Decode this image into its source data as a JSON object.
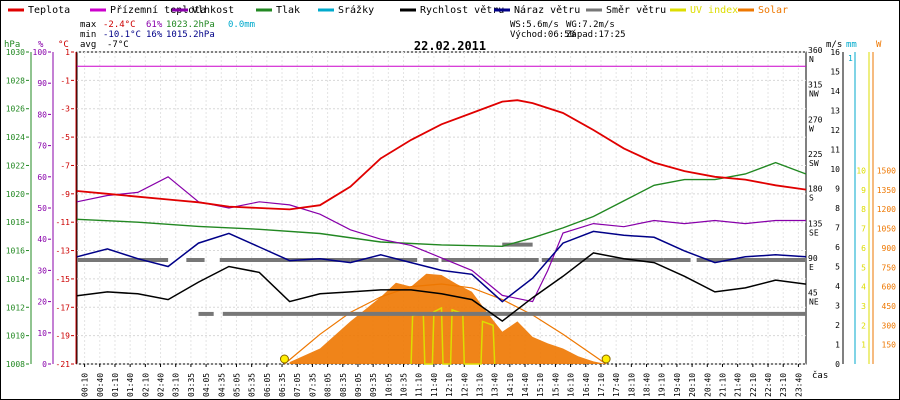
{
  "chart_data": {
    "type": "line",
    "title": "22.02.2011",
    "legend": [
      {
        "name": "Teplota",
        "color": "#e00000"
      },
      {
        "name": "Přízemní teplota",
        "color": "#cc00cc"
      },
      {
        "name": "Vlhkost",
        "color": "#8800aa"
      },
      {
        "name": "Tlak",
        "color": "#228822"
      },
      {
        "name": "Srážky",
        "color": "#00aacc"
      },
      {
        "name": "Rychlost větru",
        "color": "#000000"
      },
      {
        "name": "Náraz větru",
        "color": "#000088"
      },
      {
        "name": "Směr větru",
        "color": "#777777"
      },
      {
        "name": "UV index",
        "color": "#dddd00"
      },
      {
        "name": "Solar",
        "color": "#ee7700"
      }
    ],
    "stats": {
      "max": {
        "label": "max",
        "temp": "-2.4°C",
        "hum": "61%",
        "press": "1023.2hPa",
        "rain": "0.0mm"
      },
      "min": {
        "label": "min",
        "temp": "-10.1°C",
        "hum": "16%",
        "press": "1015.2hPa"
      },
      "avg": {
        "label": "avg",
        "temp": "-7°C"
      },
      "ws": "WS:5.6m/s",
      "wg": "WG:7.2m/s",
      "sunrise": "Východ:06:50",
      "sunset": "Západ:17:25"
    },
    "axes": {
      "hpa": {
        "unit": "hPa",
        "ticks": [
          "1030",
          "1028",
          "1026",
          "1024",
          "1022",
          "1020",
          "1018",
          "1016",
          "1014",
          "1012",
          "1010",
          "1008"
        ],
        "color": "#228822"
      },
      "pct": {
        "unit": "%",
        "ticks": [
          "100",
          "90",
          "80",
          "70",
          "60",
          "50",
          "40",
          "30",
          "20",
          "10",
          "0"
        ],
        "color": "#8800aa"
      },
      "temp": {
        "unit": "°C",
        "ticks": [
          "1",
          "-1",
          "-3",
          "-5",
          "-7",
          "-9",
          "-11",
          "-13",
          "-15",
          "-17",
          "-19",
          "-21"
        ],
        "color": "#cc0000"
      },
      "dir": {
        "ticks": [
          {
            "deg": "360",
            "lab": "N"
          },
          {
            "deg": "315",
            "lab": "NW"
          },
          {
            "deg": "270",
            "lab": "W"
          },
          {
            "deg": "225",
            "lab": "SW"
          },
          {
            "deg": "180",
            "lab": "S"
          },
          {
            "deg": "135",
            "lab": "SE"
          },
          {
            "deg": "90",
            "lab": "E"
          },
          {
            "deg": "45",
            "lab": "NE"
          }
        ]
      },
      "ms": {
        "unit": "m/s",
        "ticks": [
          "16",
          "15",
          "14",
          "13",
          "12",
          "11",
          "10",
          "9",
          "8",
          "7",
          "6",
          "5",
          "4",
          "3",
          "2",
          "1",
          "0"
        ]
      },
      "mm": {
        "unit": "mm",
        "ticks": [
          "1"
        ],
        "color": "#00aacc"
      },
      "uv": {
        "ticks": [
          "10",
          "9",
          "8",
          "7",
          "6",
          "5",
          "4",
          "3",
          "2",
          "1"
        ],
        "color": "#dddd00"
      },
      "w": {
        "unit": "W",
        "ticks": [
          "1500",
          "1350",
          "1200",
          "1050",
          "900",
          "750",
          "600",
          "450",
          "300",
          "150"
        ],
        "color": "#ee7700"
      }
    },
    "x_axis": {
      "label": "čas",
      "ticks": [
        "00:10",
        "00:40",
        "01:10",
        "01:40",
        "02:10",
        "02:40",
        "03:10",
        "03:35",
        "04:05",
        "04:35",
        "05:05",
        "05:35",
        "06:05",
        "06:35",
        "07:05",
        "07:35",
        "08:05",
        "08:35",
        "09:05",
        "09:35",
        "10:05",
        "10:35",
        "11:10",
        "11:40",
        "12:10",
        "12:40",
        "13:10",
        "13:40",
        "14:10",
        "14:40",
        "15:10",
        "15:40",
        "16:10",
        "16:40",
        "17:10",
        "17:40",
        "18:10",
        "18:40",
        "19:10",
        "19:40",
        "20:10",
        "20:40",
        "21:10",
        "21:40",
        "22:10",
        "22:40",
        "23:10",
        "23:40"
      ]
    },
    "series": [
      {
        "name": "Teplota",
        "unit": "°C",
        "color": "#e00000",
        "points": [
          [
            0.0,
            -8.8
          ],
          [
            1.0,
            -9.0
          ],
          [
            2.0,
            -9.2
          ],
          [
            3.0,
            -9.4
          ],
          [
            4.0,
            -9.6
          ],
          [
            5.0,
            -9.9
          ],
          [
            6.0,
            -10.0
          ],
          [
            7.0,
            -10.1
          ],
          [
            8.0,
            -9.8
          ],
          [
            9.0,
            -8.5
          ],
          [
            10.0,
            -6.5
          ],
          [
            11.0,
            -5.2
          ],
          [
            12.0,
            -4.1
          ],
          [
            13.0,
            -3.3
          ],
          [
            14.0,
            -2.5
          ],
          [
            14.5,
            -2.4
          ],
          [
            15.0,
            -2.6
          ],
          [
            16.0,
            -3.3
          ],
          [
            17.0,
            -4.5
          ],
          [
            18.0,
            -5.8
          ],
          [
            19.0,
            -6.8
          ],
          [
            20.0,
            -7.4
          ],
          [
            21.0,
            -7.8
          ],
          [
            22.0,
            -8.0
          ],
          [
            23.0,
            -8.4
          ],
          [
            24.0,
            -8.7
          ]
        ]
      },
      {
        "name": "Přízemní teplota",
        "unit": "°C",
        "color": "#cc00cc",
        "points": [
          [
            0.0,
            0.0
          ],
          [
            24.0,
            0.0
          ]
        ]
      },
      {
        "name": "Vlhkost",
        "unit": "%",
        "color": "#8800aa",
        "points": [
          [
            0.0,
            52
          ],
          [
            1.0,
            54
          ],
          [
            2.0,
            55
          ],
          [
            3.0,
            60
          ],
          [
            4.0,
            52
          ],
          [
            5.0,
            50
          ],
          [
            6.0,
            52
          ],
          [
            7.0,
            51
          ],
          [
            8.0,
            48
          ],
          [
            9.0,
            43
          ],
          [
            10.0,
            40
          ],
          [
            11.0,
            38
          ],
          [
            12.0,
            34
          ],
          [
            13.0,
            30
          ],
          [
            14.0,
            22
          ],
          [
            15.0,
            20
          ],
          [
            15.5,
            30
          ],
          [
            16.0,
            42
          ],
          [
            17.0,
            45
          ],
          [
            18.0,
            44
          ],
          [
            19.0,
            46
          ],
          [
            20.0,
            45
          ],
          [
            21.0,
            46
          ],
          [
            22.0,
            45
          ],
          [
            23.0,
            46
          ],
          [
            24.0,
            46
          ]
        ]
      },
      {
        "name": "Tlak",
        "unit": "hPa",
        "color": "#228822",
        "points": [
          [
            0.0,
            1018.2
          ],
          [
            2.0,
            1018.0
          ],
          [
            4.0,
            1017.7
          ],
          [
            6.0,
            1017.5
          ],
          [
            8.0,
            1017.2
          ],
          [
            10.0,
            1016.6
          ],
          [
            12.0,
            1016.4
          ],
          [
            14.0,
            1016.3
          ],
          [
            15.0,
            1016.9
          ],
          [
            16.0,
            1017.6
          ],
          [
            17.0,
            1018.4
          ],
          [
            18.0,
            1019.5
          ],
          [
            19.0,
            1020.6
          ],
          [
            20.0,
            1021.0
          ],
          [
            21.0,
            1021.0
          ],
          [
            22.0,
            1021.4
          ],
          [
            23.0,
            1022.2
          ],
          [
            24.0,
            1021.4
          ]
        ]
      },
      {
        "name": "Rychlost větru",
        "unit": "m/s",
        "color": "#000000",
        "points": [
          [
            0.0,
            3.5
          ],
          [
            1.0,
            3.7
          ],
          [
            2.0,
            3.6
          ],
          [
            3.0,
            3.3
          ],
          [
            4.0,
            4.2
          ],
          [
            5.0,
            5.0
          ],
          [
            6.0,
            4.7
          ],
          [
            7.0,
            3.2
          ],
          [
            8.0,
            3.6
          ],
          [
            9.0,
            3.7
          ],
          [
            10.0,
            3.8
          ],
          [
            11.0,
            3.8
          ],
          [
            12.0,
            3.6
          ],
          [
            13.0,
            3.3
          ],
          [
            14.0,
            2.2
          ],
          [
            15.0,
            3.4
          ],
          [
            16.0,
            4.5
          ],
          [
            17.0,
            5.7
          ],
          [
            18.0,
            5.4
          ],
          [
            19.0,
            5.2
          ],
          [
            20.0,
            4.5
          ],
          [
            21.0,
            3.7
          ],
          [
            22.0,
            3.9
          ],
          [
            23.0,
            4.3
          ],
          [
            24.0,
            4.1
          ]
        ]
      },
      {
        "name": "Náraz větru",
        "unit": "m/s",
        "color": "#000088",
        "points": [
          [
            0.0,
            5.5
          ],
          [
            1.0,
            5.9
          ],
          [
            2.0,
            5.4
          ],
          [
            3.0,
            5.0
          ],
          [
            4.0,
            6.2
          ],
          [
            5.0,
            6.7
          ],
          [
            6.0,
            6.0
          ],
          [
            7.0,
            5.3
          ],
          [
            8.0,
            5.4
          ],
          [
            9.0,
            5.2
          ],
          [
            10.0,
            5.6
          ],
          [
            11.0,
            5.2
          ],
          [
            12.0,
            4.8
          ],
          [
            13.0,
            4.6
          ],
          [
            14.0,
            3.2
          ],
          [
            15.0,
            4.4
          ],
          [
            16.0,
            6.2
          ],
          [
            17.0,
            6.8
          ],
          [
            18.0,
            6.6
          ],
          [
            19.0,
            6.5
          ],
          [
            20.0,
            5.8
          ],
          [
            21.0,
            5.2
          ],
          [
            22.0,
            5.5
          ],
          [
            23.0,
            5.6
          ],
          [
            24.0,
            5.5
          ]
        ]
      },
      {
        "name": "Solar",
        "unit": "W/m2",
        "color": "#ee7700",
        "sunrise": 6.83,
        "sunset": 17.42,
        "points": [
          [
            7.0,
            15
          ],
          [
            8.0,
            120
          ],
          [
            9.0,
            330
          ],
          [
            10.0,
            520
          ],
          [
            10.5,
            630
          ],
          [
            11.0,
            600
          ],
          [
            11.5,
            700
          ],
          [
            12.0,
            690
          ],
          [
            12.5,
            620
          ],
          [
            13.0,
            560
          ],
          [
            13.5,
            400
          ],
          [
            14.0,
            250
          ],
          [
            14.5,
            330
          ],
          [
            15.0,
            210
          ],
          [
            15.5,
            160
          ],
          [
            16.0,
            120
          ],
          [
            16.5,
            60
          ],
          [
            17.0,
            20
          ],
          [
            17.42,
            0
          ]
        ]
      },
      {
        "name": "Solar-max",
        "unit": "W/m2",
        "color": "#ee7700",
        "points": [
          [
            6.83,
            0
          ],
          [
            8.0,
            230
          ],
          [
            9.0,
            400
          ],
          [
            10.0,
            520
          ],
          [
            11.0,
            600
          ],
          [
            12.0,
            620
          ],
          [
            13.0,
            590
          ],
          [
            14.0,
            500
          ],
          [
            15.0,
            380
          ],
          [
            16.0,
            230
          ],
          [
            17.42,
            0
          ]
        ]
      },
      {
        "name": "UV index",
        "unit": "",
        "color": "#dddd00",
        "points": [
          [
            11.0,
            0
          ],
          [
            11.05,
            2.5
          ],
          [
            11.4,
            2.6
          ],
          [
            11.45,
            0
          ],
          [
            11.7,
            0
          ],
          [
            11.75,
            2.7
          ],
          [
            12.0,
            2.9
          ],
          [
            12.05,
            0
          ],
          [
            12.3,
            0
          ],
          [
            12.35,
            2.8
          ],
          [
            12.7,
            2.6
          ],
          [
            12.75,
            0
          ],
          [
            13.3,
            0
          ],
          [
            13.35,
            2.2
          ],
          [
            13.7,
            2.0
          ],
          [
            13.75,
            0
          ]
        ]
      },
      {
        "name": "Směr větru",
        "unit": "°",
        "color": "#777777",
        "segments": [
          [
            0.0,
            3.0,
            90
          ],
          [
            3.6,
            4.2,
            90
          ],
          [
            4.7,
            8.0,
            90
          ],
          [
            8.0,
            9.0,
            90
          ],
          [
            9.0,
            11.2,
            90
          ],
          [
            11.4,
            11.9,
            90
          ],
          [
            12.0,
            15.2,
            90
          ],
          [
            15.3,
            19.3,
            90
          ],
          [
            19.3,
            20.2,
            90
          ],
          [
            20.4,
            24.0,
            90
          ],
          [
            4.0,
            4.5,
            20
          ],
          [
            4.8,
            24.0,
            20
          ],
          [
            14.0,
            15.0,
            110
          ]
        ]
      }
    ]
  }
}
